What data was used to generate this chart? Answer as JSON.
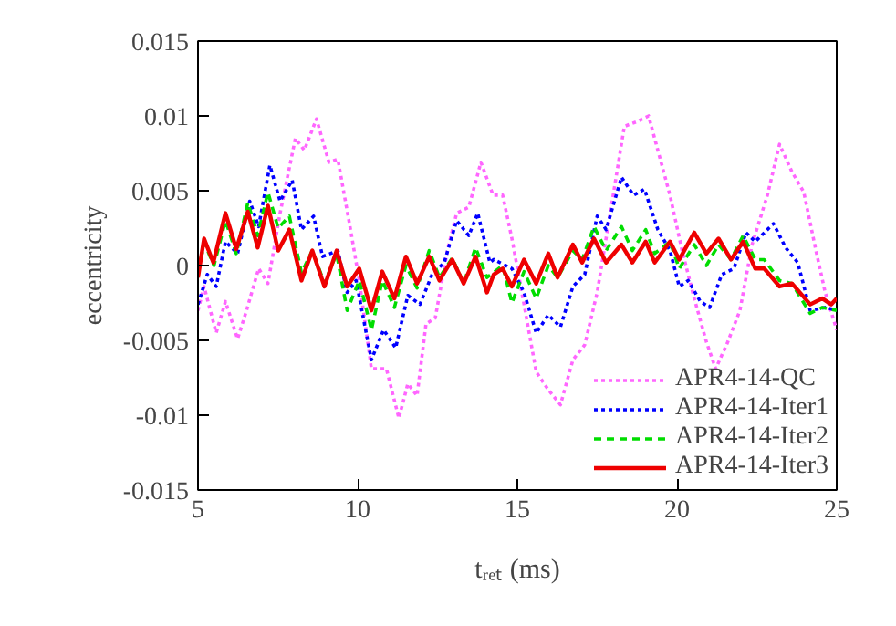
{
  "chart_data": {
    "type": "line",
    "xlabel": "tᵣₑₜ (ms)",
    "ylabel": "eccentricity",
    "xlim": [
      5,
      25
    ],
    "ylim": [
      -0.015,
      0.015
    ],
    "xticks": [
      5,
      10,
      15,
      20,
      25
    ],
    "yticks": [
      -0.015,
      -0.01,
      -0.005,
      0,
      0.005,
      0.01,
      0.015
    ],
    "grid": false,
    "legend": "bottom right",
    "marker": "none",
    "series": [
      {
        "name": "APR4-14-QC",
        "color": "#ff66ff",
        "line_style": "dotted",
        "x": [
          5.0,
          5.19,
          5.57,
          5.86,
          6.24,
          6.52,
          6.9,
          7.19,
          7.57,
          8.05,
          8.33,
          8.71,
          9.1,
          9.38,
          9.76,
          10.05,
          10.43,
          10.9,
          11.29,
          11.57,
          11.86,
          12.14,
          12.43,
          12.81,
          13.1,
          13.48,
          13.86,
          14.24,
          14.54,
          14.83,
          15.21,
          15.59,
          15.97,
          16.35,
          16.74,
          17.11,
          17.5,
          17.97,
          18.35,
          18.73,
          19.11,
          19.4,
          19.78,
          20.16,
          20.54,
          20.92,
          21.21,
          21.59,
          21.97,
          22.35,
          22.83,
          23.21,
          23.59,
          23.97,
          24.35,
          24.64,
          25.0
        ],
        "values": [
          -0.003,
          -0.0014,
          -0.0045,
          -0.0024,
          -0.0049,
          -0.003,
          -0.0002,
          -0.0012,
          0.0035,
          0.0085,
          0.0077,
          0.0098,
          0.0069,
          0.0071,
          0.0026,
          -0.001,
          -0.0069,
          -0.0069,
          -0.0102,
          -0.0079,
          -0.0087,
          -0.0039,
          -0.0035,
          0.001,
          0.0035,
          0.0039,
          0.0069,
          0.0047,
          0.0047,
          0.0018,
          -0.0026,
          -0.0071,
          -0.0083,
          -0.0093,
          -0.0063,
          -0.0053,
          -0.0018,
          0.0043,
          0.0093,
          0.0096,
          0.01,
          0.0077,
          0.0047,
          0.001,
          -0.0022,
          -0.0051,
          -0.0069,
          -0.0051,
          -0.003,
          0.0014,
          0.0047,
          0.0081,
          0.0063,
          0.0049,
          0.001,
          -0.0018,
          -0.0043
        ]
      },
      {
        "name": "APR4-14-Iter1",
        "color": "#0000ff",
        "line_style": "dotted",
        "x": [
          5.0,
          5.29,
          5.57,
          5.86,
          6.24,
          6.62,
          6.9,
          7.25,
          7.57,
          7.95,
          8.24,
          8.62,
          8.9,
          9.38,
          9.67,
          9.95,
          10.43,
          10.81,
          11.19,
          11.57,
          11.95,
          12.33,
          12.71,
          13.1,
          13.48,
          13.76,
          14.14,
          14.26,
          14.83,
          15.21,
          15.59,
          15.97,
          16.35,
          16.74,
          17.11,
          17.5,
          17.78,
          18.26,
          18.64,
          18.98,
          19.4,
          19.78,
          20.07,
          20.35,
          20.73,
          21.02,
          21.4,
          21.78,
          22.16,
          22.45,
          23.02,
          23.4,
          23.78,
          24.17,
          24.64,
          25.0
        ],
        "values": [
          -0.0026,
          -0.0006,
          -0.0014,
          0.0016,
          0.0008,
          0.0043,
          0.0026,
          0.0067,
          0.0043,
          0.0057,
          0.0024,
          0.0033,
          0.0006,
          0.001,
          -0.0018,
          -0.001,
          -0.0063,
          -0.0043,
          -0.0055,
          -0.002,
          -0.0026,
          -0.0006,
          0.0002,
          0.003,
          0.002,
          0.0035,
          0.0002,
          0.0004,
          -0.0002,
          -0.0018,
          -0.0045,
          -0.0033,
          -0.0041,
          -0.0014,
          -0.0006,
          0.0033,
          0.0024,
          0.0059,
          0.0047,
          0.0051,
          0.0024,
          0.001,
          -0.0014,
          -0.001,
          -0.0024,
          -0.0028,
          -0.0006,
          -0.0002,
          0.0022,
          0.0016,
          0.0028,
          0.0012,
          0.0002,
          -0.003,
          -0.0028,
          -0.003
        ]
      },
      {
        "name": "APR4-14-Iter2",
        "color": "#00dd00",
        "line_style": "dashed",
        "x": [
          5.0,
          5.2,
          5.5,
          5.86,
          6.2,
          6.56,
          6.87,
          7.19,
          7.51,
          7.86,
          8.24,
          8.58,
          8.96,
          9.34,
          9.67,
          10.05,
          10.43,
          10.77,
          11.15,
          11.51,
          11.86,
          12.24,
          12.56,
          12.96,
          13.32,
          13.69,
          14.05,
          14.54,
          14.83,
          15.21,
          15.59,
          15.97,
          16.26,
          16.74,
          17.03,
          17.4,
          17.78,
          18.26,
          18.6,
          19.02,
          19.3,
          19.78,
          20.07,
          20.54,
          20.92,
          21.3,
          21.69,
          22.07,
          22.45,
          22.73,
          23.21,
          23.6,
          24.17,
          24.55,
          25.0
        ],
        "values": [
          -0.0004,
          0.0015,
          0.0,
          0.003,
          0.0008,
          0.0042,
          0.002,
          0.0049,
          0.0025,
          0.0033,
          -0.0005,
          0.001,
          -0.0012,
          0.0008,
          -0.003,
          -0.001,
          -0.0043,
          -0.001,
          -0.0028,
          0.0,
          -0.0015,
          0.001,
          -0.0008,
          0.0005,
          -0.0012,
          0.0012,
          -0.0008,
          0.0,
          -0.0025,
          -0.0004,
          -0.0022,
          0.0,
          -0.0008,
          0.001,
          0.0004,
          0.0026,
          0.001,
          0.0026,
          0.001,
          0.0024,
          0.0008,
          0.0016,
          -0.0002,
          0.0014,
          0.0,
          0.0014,
          0.0004,
          0.002,
          0.0004,
          0.0004,
          -0.001,
          -0.0012,
          -0.0032,
          -0.0028,
          -0.003
        ]
      },
      {
        "name": "APR4-14-Iter3",
        "color": "#ee0000",
        "line_style": "solid",
        "x": [
          5.0,
          5.19,
          5.48,
          5.86,
          6.2,
          6.56,
          6.87,
          7.19,
          7.51,
          7.86,
          8.24,
          8.58,
          8.96,
          9.34,
          9.67,
          10.05,
          10.43,
          10.77,
          11.15,
          11.51,
          11.86,
          12.24,
          12.56,
          12.96,
          13.32,
          13.69,
          14.05,
          14.26,
          14.54,
          14.83,
          15.21,
          15.59,
          15.97,
          16.26,
          16.74,
          17.03,
          17.4,
          17.78,
          18.26,
          18.6,
          19.02,
          19.3,
          19.78,
          20.07,
          20.54,
          20.92,
          21.3,
          21.69,
          22.07,
          22.45,
          22.73,
          23.21,
          23.6,
          24.17,
          24.55,
          24.83,
          25.0
        ],
        "values": [
          -0.0008,
          0.0018,
          0.0002,
          0.0035,
          0.0011,
          0.0036,
          0.0012,
          0.004,
          0.001,
          0.0024,
          -0.001,
          0.001,
          -0.0014,
          0.001,
          -0.0014,
          -0.0002,
          -0.003,
          -0.0004,
          -0.0022,
          0.0006,
          -0.0012,
          0.0006,
          -0.001,
          0.0004,
          -0.0012,
          0.0006,
          -0.0018,
          -0.0006,
          -0.0002,
          -0.0014,
          0.0004,
          -0.0012,
          0.0008,
          -0.0008,
          0.0014,
          0.0002,
          0.0018,
          0.0002,
          0.0014,
          0.0002,
          0.0016,
          0.0002,
          0.0016,
          0.0004,
          0.0022,
          0.0008,
          0.0018,
          0.0004,
          0.0016,
          -0.0002,
          -0.0002,
          -0.0014,
          -0.0012,
          -0.0026,
          -0.0022,
          -0.0026,
          -0.0022
        ]
      }
    ]
  }
}
